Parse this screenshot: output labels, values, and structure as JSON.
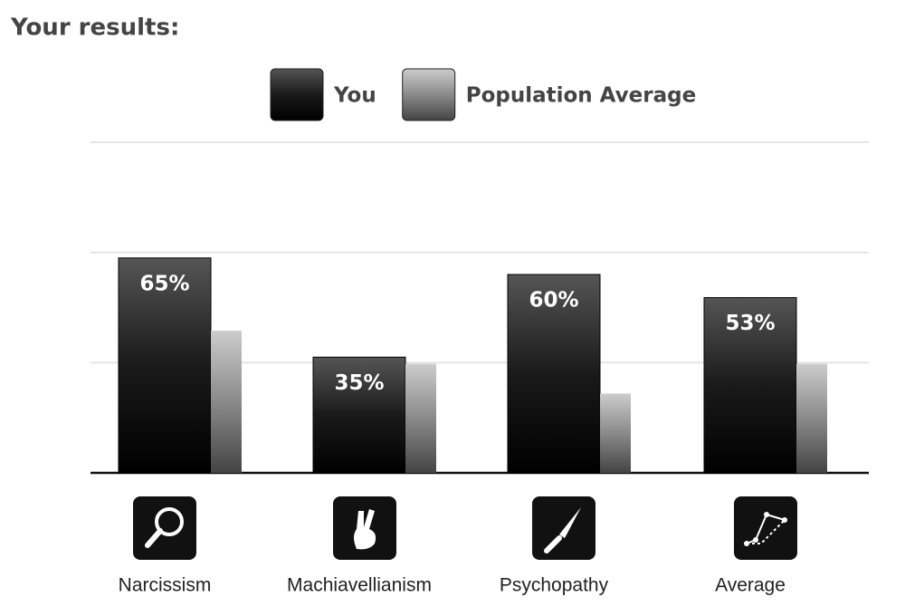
{
  "chart_data": {
    "type": "bar",
    "title": "Your results:",
    "categories": [
      "Narcissism",
      "Machiavellianism",
      "Psychopathy",
      "Average"
    ],
    "series": [
      {
        "name": "You",
        "color": "#1a1a1a",
        "values": [
          65,
          35,
          60,
          53
        ],
        "value_labels": [
          "65%",
          "35%",
          "60%",
          "53%"
        ]
      },
      {
        "name": "Population Average",
        "color": "#8a8a8a",
        "values": [
          43,
          33,
          24,
          33
        ]
      }
    ],
    "ylim": [
      0,
      100
    ],
    "yticks": [
      0,
      33.33,
      66.67,
      100
    ],
    "grid": true
  }
}
